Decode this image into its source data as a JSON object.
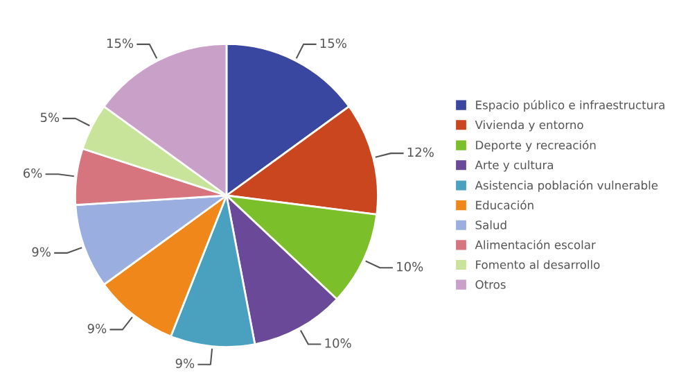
{
  "chart_data": {
    "type": "pie",
    "categories": [
      "Espacio público e infraestructura",
      "Vivienda y entorno",
      "Deporte y recreación",
      "Arte y cultura",
      "Asistencia población vulnerable",
      "Educación",
      "Salud",
      "Alimentación escolar",
      "Fomento al desarrollo",
      "Otros"
    ],
    "values": [
      15,
      12,
      10,
      10,
      9,
      9,
      9,
      6,
      5,
      15
    ],
    "value_labels": [
      "15%",
      "12%",
      "10%",
      "10%",
      "9%",
      "9%",
      "9%",
      "6%",
      "5%",
      "15%"
    ],
    "colors": [
      "#3a47a0",
      "#c9461f",
      "#7bbf2a",
      "#6a4a98",
      "#4aa0bf",
      "#f0871a",
      "#9aaedf",
      "#d6757e",
      "#c8e49a",
      "#c9a0c8"
    ],
    "legend": "right"
  }
}
